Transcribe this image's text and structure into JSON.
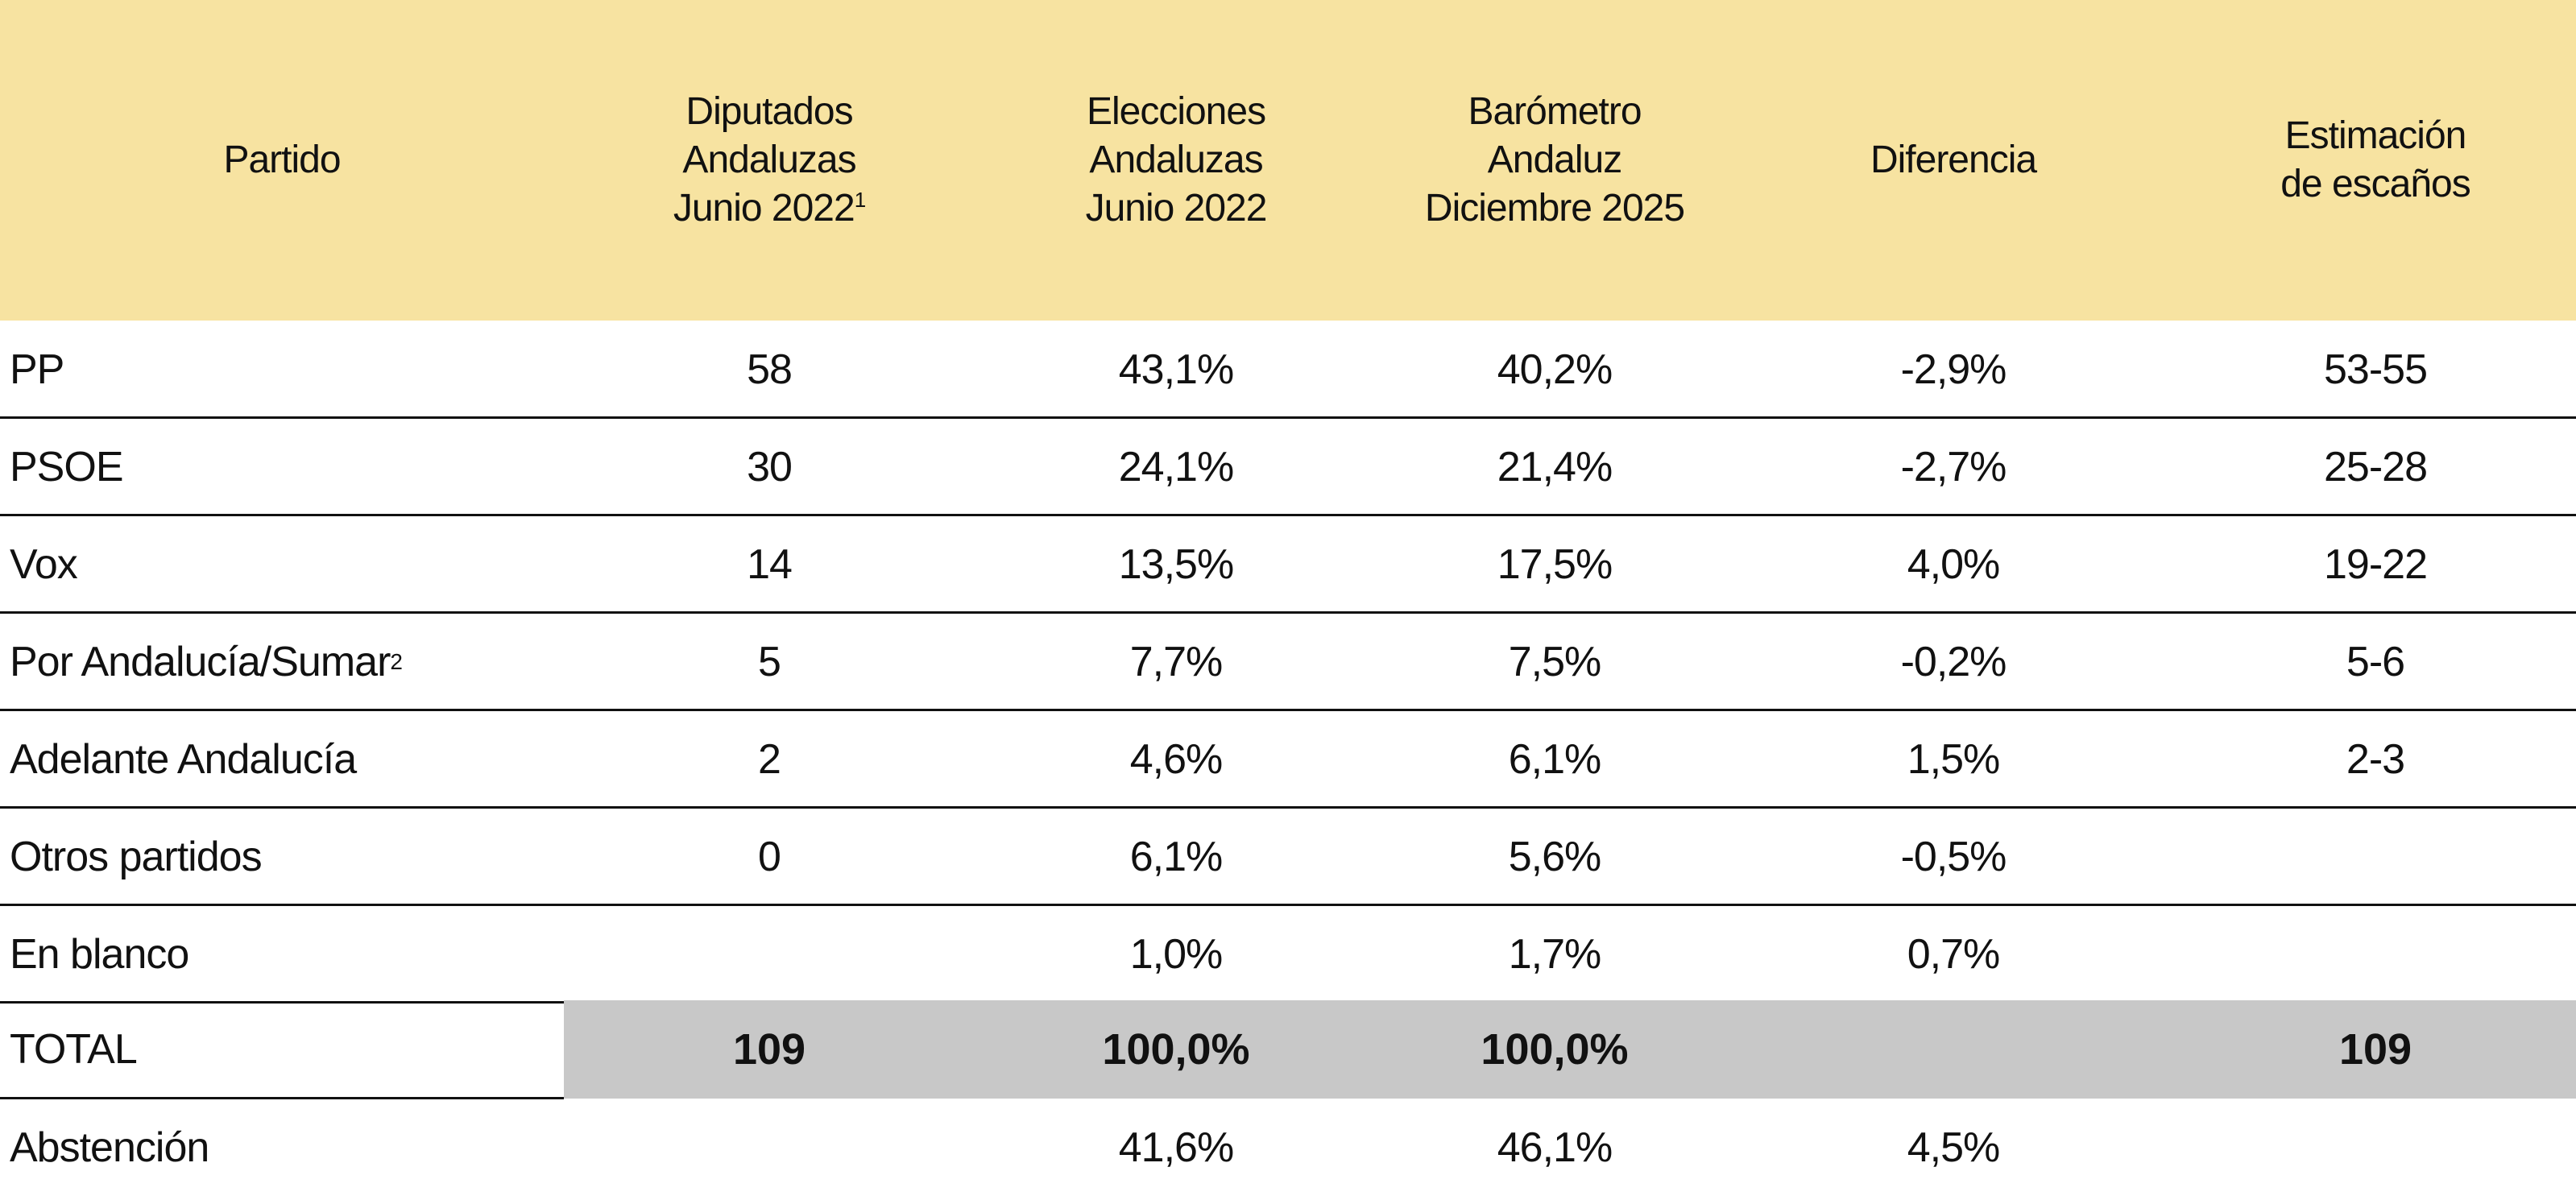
{
  "colors": {
    "header_bg": "#f7e3a1",
    "total_bg": "#c8c8c8",
    "rule": "#111111"
  },
  "chart_data": {
    "type": "table",
    "columns": [
      {
        "label": "Partido",
        "sup": ""
      },
      {
        "label": "Diputados\nAndaluzas\nJunio 2022",
        "sup": "1"
      },
      {
        "label": "Elecciones\nAndaluzas\nJunio 2022",
        "sup": ""
      },
      {
        "label": "Barómetro\nAndaluz\nDiciembre 2025",
        "sup": ""
      },
      {
        "label": "Diferencia",
        "sup": ""
      },
      {
        "label": "Estimación\nde escaños",
        "sup": ""
      }
    ],
    "rows": [
      {
        "party": "PP",
        "sup": "",
        "values": [
          "58",
          "43,1%",
          "40,2%",
          "-2,9%",
          "53-55"
        ]
      },
      {
        "party": "PSOE",
        "sup": "",
        "values": [
          "30",
          "24,1%",
          "21,4%",
          "-2,7%",
          "25-28"
        ]
      },
      {
        "party": "Vox",
        "sup": "",
        "values": [
          "14",
          "13,5%",
          "17,5%",
          "4,0%",
          "19-22"
        ]
      },
      {
        "party": "Por Andalucía/Sumar",
        "sup": "2",
        "values": [
          "5",
          "7,7%",
          "7,5%",
          "-0,2%",
          "5-6"
        ]
      },
      {
        "party": "Adelante Andalucía",
        "sup": "",
        "values": [
          "2",
          "4,6%",
          "6,1%",
          "1,5%",
          "2-3"
        ]
      },
      {
        "party": "Otros partidos",
        "sup": "",
        "values": [
          "0",
          "6,1%",
          "5,6%",
          "-0,5%",
          ""
        ]
      },
      {
        "party": "En blanco",
        "sup": "",
        "values": [
          "",
          "1,0%",
          "1,7%",
          "0,7%",
          ""
        ]
      }
    ],
    "total": {
      "party": "TOTAL",
      "values": [
        "109",
        "100,0%",
        "100,0%",
        "",
        "109"
      ]
    },
    "abstention": {
      "party": "Abstención",
      "values": [
        "",
        "41,6%",
        "46,1%",
        "4,5%",
        ""
      ]
    }
  }
}
